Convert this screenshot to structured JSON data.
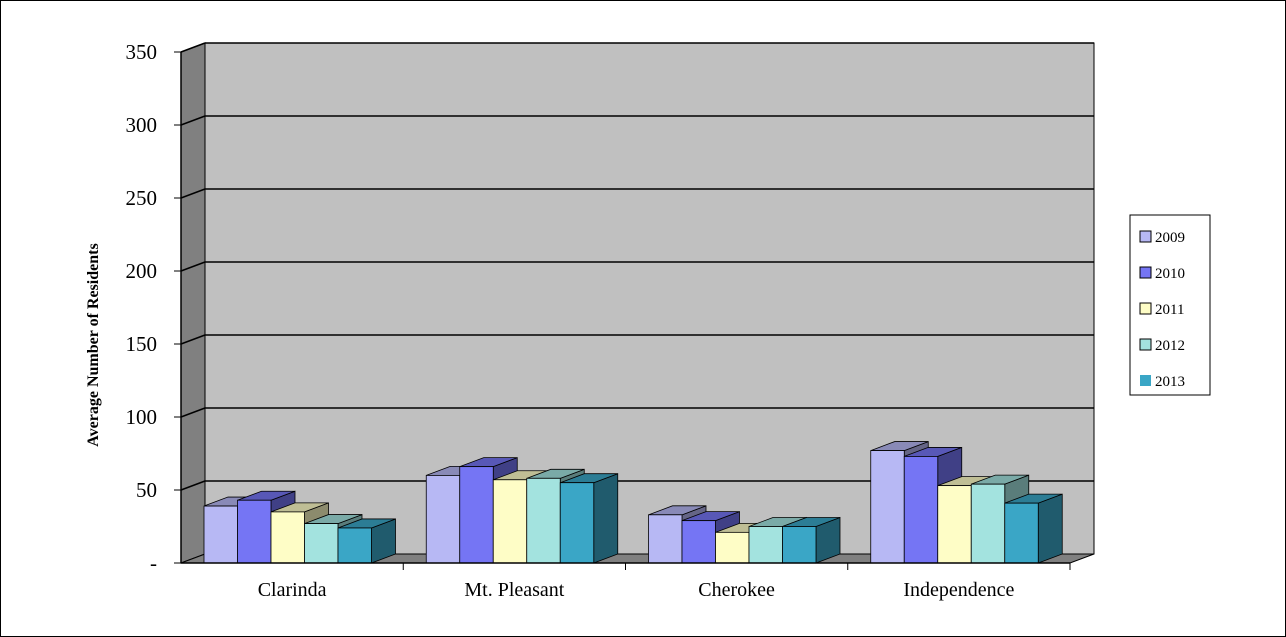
{
  "chart_data": {
    "type": "bar",
    "categories": [
      "Clarinda",
      "Mt. Pleasant",
      "Cherokee",
      "Independence"
    ],
    "series": [
      {
        "name": "2009",
        "color": "#b7b8f4",
        "values": [
          39,
          60,
          33,
          77
        ]
      },
      {
        "name": "2010",
        "color": "#7575f4",
        "values": [
          43,
          66,
          29,
          73
        ]
      },
      {
        "name": "2011",
        "color": "#fefdc6",
        "values": [
          35,
          57,
          21,
          53
        ]
      },
      {
        "name": "2012",
        "color": "#a3e3df",
        "values": [
          27,
          58,
          25,
          54
        ]
      },
      {
        "name": "2013",
        "color": "#3aa6c6",
        "values": [
          24,
          55,
          25,
          41
        ]
      }
    ],
    "y_ticks": [
      "-",
      "50",
      "100",
      "150",
      "200",
      "250",
      "300",
      "350"
    ],
    "ylabel": "Average Number of Residents",
    "ylim": [
      0,
      350
    ],
    "grid": true,
    "legend_position": "right",
    "style": "3d-clustered-column",
    "wall_color": "#c0c0c0"
  }
}
